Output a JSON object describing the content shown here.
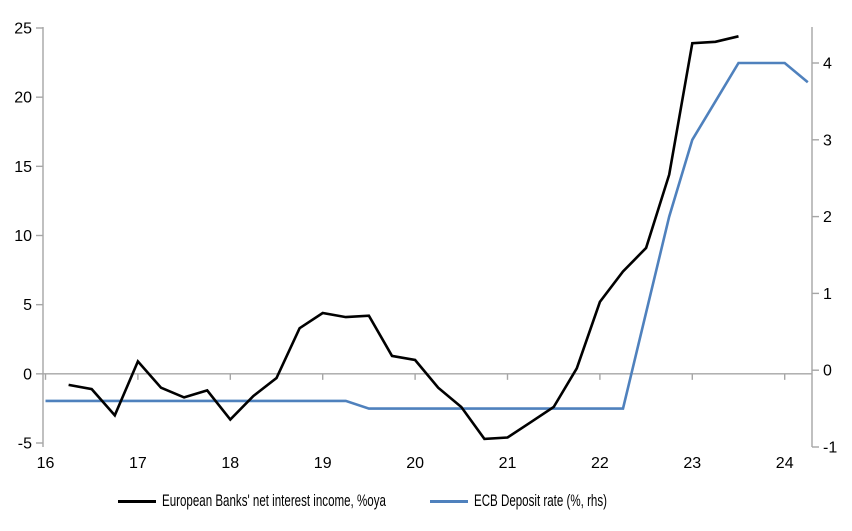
{
  "chart_data": {
    "type": "line",
    "title": "",
    "grid": "zero-line-only",
    "legend_position": "bottom",
    "axis_color": "#a6a6a6",
    "text_color": "#000000",
    "background_color": "#ffffff",
    "x_axis": {
      "min": 16,
      "max": 24.3,
      "ticks": [
        16,
        17,
        18,
        19,
        20,
        21,
        22,
        23,
        24
      ]
    },
    "y_left": {
      "min": -5,
      "max": 25,
      "ticks": [
        25,
        20,
        15,
        10,
        5,
        0,
        -5
      ]
    },
    "y_right": {
      "min": -1,
      "max": 4.5,
      "ticks": [
        4,
        3,
        2,
        1,
        0,
        -1
      ]
    },
    "series": [
      {
        "name": "European Banks' net interest income, %oya",
        "axis": "left",
        "color": "#000000",
        "x": [
          16.25,
          16.5,
          16.75,
          17.0,
          17.25,
          17.5,
          17.75,
          18.0,
          18.25,
          18.5,
          18.75,
          19.0,
          19.25,
          19.5,
          19.75,
          20.0,
          20.25,
          20.5,
          20.75,
          21.0,
          21.25,
          21.5,
          21.75,
          22.0,
          22.25,
          22.5,
          22.75,
          23.0,
          23.25,
          23.5
        ],
        "values": [
          -0.8,
          -1.1,
          -3.0,
          0.9,
          -1.0,
          -1.7,
          -1.2,
          -3.3,
          -1.6,
          -0.3,
          3.3,
          4.4,
          4.1,
          4.2,
          1.3,
          1.0,
          -1.0,
          -2.4,
          -4.7,
          -4.6,
          -3.5,
          -2.4,
          0.4,
          5.2,
          7.4,
          9.1,
          14.4,
          23.9,
          24.0,
          24.4
        ]
      },
      {
        "name": "ECB Deposit rate (%, rhs)",
        "axis": "right",
        "color": "#4f81bd",
        "x": [
          16.0,
          19.25,
          19.5,
          22.25,
          22.5,
          22.75,
          23.0,
          23.25,
          23.5,
          24.0,
          24.25
        ],
        "values": [
          -0.4,
          -0.4,
          -0.5,
          -0.5,
          0.75,
          2.0,
          3.0,
          3.5,
          4.0,
          4.0,
          3.75
        ]
      }
    ]
  }
}
